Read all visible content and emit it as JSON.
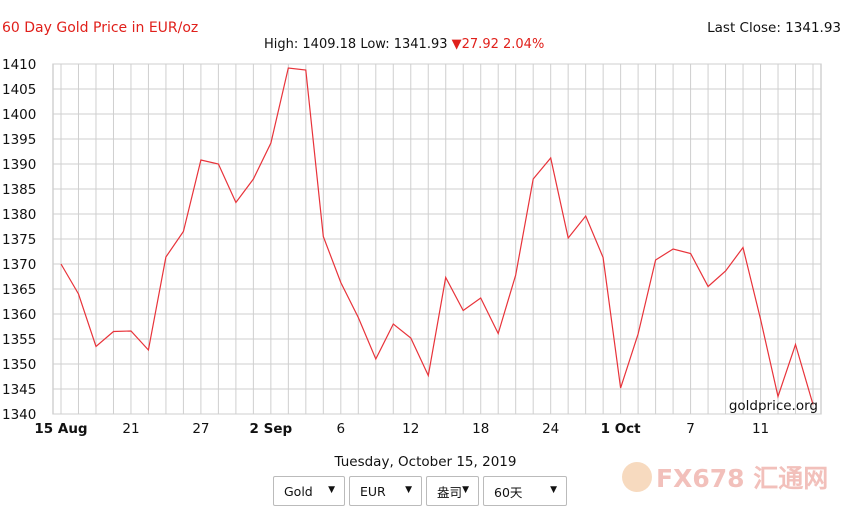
{
  "title": "60 Day Gold Price in EUR/oz",
  "last_close": {
    "label": "Last Close:",
    "value": "1341.93"
  },
  "summary": {
    "high_label": "High:",
    "high": "1409.18",
    "low_label": "Low:",
    "low": "1341.93",
    "change_arrow": "▼",
    "change": "27.92",
    "change_pct": "2.04%"
  },
  "date_line": "Tuesday, October 15, 2019",
  "watermark_site": "goldprice.org",
  "watermark_brand": "FX678 汇通网",
  "controls": {
    "metal": "Gold",
    "currency": "EUR",
    "unit": "盎司",
    "period": "60天",
    "caret": "▼"
  },
  "colors": {
    "line": "#e8333a",
    "title": "#e0201b",
    "grid": "#cfcfcf"
  },
  "chart_data": {
    "type": "line",
    "title": "60 Day Gold Price in EUR/oz",
    "xlabel": "",
    "ylabel": "",
    "ylim": [
      1340,
      1410
    ],
    "y_ticks": [
      1340,
      1345,
      1350,
      1355,
      1360,
      1365,
      1370,
      1375,
      1380,
      1385,
      1390,
      1395,
      1400,
      1405,
      1410
    ],
    "x_tick_labels": [
      {
        "index": 0,
        "label": "15 Aug",
        "bold": true
      },
      {
        "index": 4,
        "label": "21",
        "bold": false
      },
      {
        "index": 8,
        "label": "27",
        "bold": false
      },
      {
        "index": 12,
        "label": "2 Sep",
        "bold": true
      },
      {
        "index": 16,
        "label": "6",
        "bold": false
      },
      {
        "index": 20,
        "label": "12",
        "bold": false
      },
      {
        "index": 24,
        "label": "18",
        "bold": false
      },
      {
        "index": 28,
        "label": "24",
        "bold": false
      },
      {
        "index": 32,
        "label": "1 Oct",
        "bold": true
      },
      {
        "index": 36,
        "label": "7",
        "bold": false
      },
      {
        "index": 40,
        "label": "11",
        "bold": false
      }
    ],
    "grid": true,
    "series": [
      {
        "values": [
          1370,
          1364,
          1353.5,
          1356.5,
          1356.6,
          1352.8,
          1371.4,
          1376.5,
          1390.8,
          1390,
          1382.3,
          1387,
          1394.2,
          1409.2,
          1408.8,
          1375.5,
          1366.3,
          1359.3,
          1351,
          1358,
          1355.2,
          1347.7,
          1367.3,
          1360.7,
          1363.2,
          1356.1,
          1367.8,
          1387,
          1391.2,
          1375.2,
          1379.6,
          1371.3,
          1345.2,
          1356,
          1370.8,
          1373,
          1372.1,
          1365.5,
          1368.6,
          1373.3,
          1359,
          1343.5,
          1353.9,
          1341.9
        ]
      }
    ]
  }
}
